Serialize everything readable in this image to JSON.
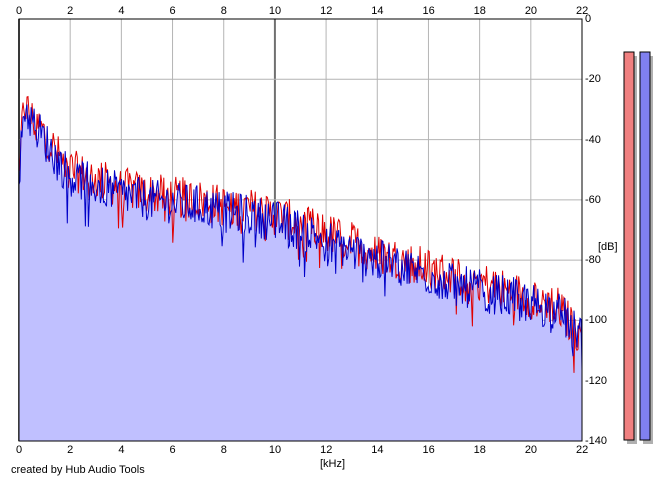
{
  "footer": {
    "credit": "created by Hub Audio Tools"
  },
  "colors": {
    "left_channel": "#e00000",
    "right_channel": "#0000c8",
    "fill": "#c0c0ff",
    "grid": "#b4b4b4",
    "major_grid": "#707070",
    "meter_left": "#f08080",
    "meter_right": "#8080f0"
  },
  "chart_data": {
    "type": "line",
    "title": "",
    "xlabel": "[kHz]",
    "ylabel": "[dB]",
    "xlim": [
      0,
      22
    ],
    "ylim": [
      -140,
      0
    ],
    "x_ticks": [
      "0",
      "2",
      "4",
      "6",
      "8",
      "10",
      "12",
      "14",
      "16",
      "18",
      "20",
      "22"
    ],
    "y_ticks": [
      "0",
      "-20",
      "-40",
      "-60",
      "-80",
      "-100",
      "-120",
      "-140"
    ],
    "grid": true,
    "x_tick_positions_top": true,
    "series": [
      {
        "color": "#e00000",
        "x": [
          0,
          0.2,
          0.5,
          1,
          1.5,
          2,
          3,
          4,
          5,
          6,
          7,
          8,
          9,
          10,
          11,
          12,
          13,
          14,
          15,
          16,
          17,
          18,
          19,
          20,
          21,
          22
        ],
        "y": [
          -48,
          -28,
          -33,
          -38,
          -45,
          -50,
          -53,
          -56,
          -58,
          -59,
          -60,
          -62,
          -63,
          -65,
          -68,
          -71,
          -74,
          -78,
          -80,
          -83,
          -85,
          -87,
          -90,
          -92,
          -95,
          -106
        ]
      },
      {
        "color": "#0000c8",
        "x": [
          0,
          0.2,
          0.5,
          1,
          1.5,
          2,
          3,
          4,
          5,
          6,
          7,
          8,
          9,
          10,
          11,
          12,
          13,
          14,
          15,
          16,
          17,
          18,
          19,
          20,
          21,
          22
        ],
        "y": [
          -48,
          -29,
          -34,
          -40,
          -47,
          -52,
          -55,
          -58,
          -60,
          -61,
          -62,
          -64,
          -65,
          -67,
          -70,
          -73,
          -77,
          -80,
          -82,
          -85,
          -88,
          -90,
          -92,
          -94,
          -97,
          -104
        ]
      }
    ],
    "level_meters": [
      {
        "channel": "left",
        "level_db": 0
      },
      {
        "channel": "right",
        "level_db": 0
      }
    ]
  }
}
